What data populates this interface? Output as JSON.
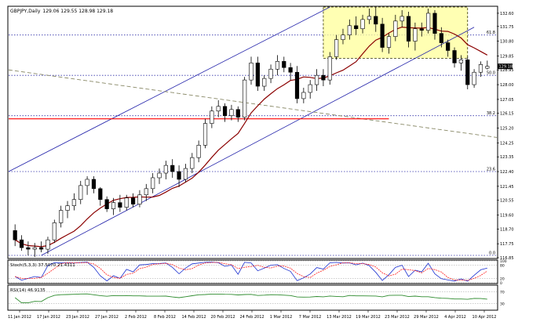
{
  "chart_data": {
    "type": "candlestick",
    "title": "GBPJPY,Daily",
    "ohlc_readout": "129.06 129.55 128.98 129.18",
    "last_price": "129.18",
    "price_axis": {
      "ticks": [
        "132.60",
        "131.75",
        "130.80",
        "129.85",
        "128.95",
        "128.00",
        "127.05",
        "126.15",
        "125.20",
        "124.25",
        "123.35",
        "122.40",
        "121.45",
        "120.55",
        "119.60",
        "118.70",
        "117.75",
        "116.85"
      ],
      "range": [
        116.85,
        133.0
      ]
    },
    "date_axis": {
      "labels": [
        "11 Jan 2012",
        "17 Jan 2012",
        "23 Jan 2012",
        "27 Jan 2012",
        "2 Feb 2012",
        "8 Feb 2012",
        "14 Feb 2012",
        "20 Feb 2012",
        "24 Feb 2012",
        "1 Mar 2012",
        "7 Mar 2012",
        "13 Mar 2012",
        "19 Mar 2012",
        "23 Mar 2012",
        "29 Mar 2012",
        "4 Apr 2012",
        "10 Apr 2012"
      ]
    },
    "fib_levels": [
      {
        "label": "61.8",
        "price": 131.2
      },
      {
        "label": "50.0",
        "price": 128.6
      },
      {
        "label": "38.2",
        "price": 126.0
      },
      {
        "label": "23.6",
        "price": 122.4
      },
      {
        "label": "0.0",
        "price": 117.0
      }
    ],
    "moving_average": {
      "color": "#8b0000"
    },
    "candles": [
      {
        "o": 118.6,
        "h": 119.0,
        "l": 117.6,
        "c": 118.0
      },
      {
        "o": 118.0,
        "h": 118.3,
        "l": 117.3,
        "c": 117.5
      },
      {
        "o": 117.5,
        "h": 117.9,
        "l": 117.0,
        "c": 117.4
      },
      {
        "o": 117.4,
        "h": 117.8,
        "l": 116.9,
        "c": 117.5
      },
      {
        "o": 117.5,
        "h": 117.9,
        "l": 117.2,
        "c": 117.4
      },
      {
        "o": 117.4,
        "h": 118.2,
        "l": 117.1,
        "c": 118.0
      },
      {
        "o": 118.0,
        "h": 119.3,
        "l": 117.8,
        "c": 119.1
      },
      {
        "o": 119.1,
        "h": 120.2,
        "l": 118.8,
        "c": 119.9
      },
      {
        "o": 119.9,
        "h": 120.5,
        "l": 119.4,
        "c": 120.2
      },
      {
        "o": 120.2,
        "h": 121.0,
        "l": 119.9,
        "c": 120.6
      },
      {
        "o": 120.6,
        "h": 121.8,
        "l": 120.3,
        "c": 121.5
      },
      {
        "o": 121.5,
        "h": 122.1,
        "l": 120.9,
        "c": 121.9
      },
      {
        "o": 121.9,
        "h": 122.1,
        "l": 121.0,
        "c": 121.3
      },
      {
        "o": 121.3,
        "h": 121.4,
        "l": 120.2,
        "c": 120.6
      },
      {
        "o": 120.6,
        "h": 120.8,
        "l": 119.8,
        "c": 120.0
      },
      {
        "o": 120.0,
        "h": 120.7,
        "l": 119.6,
        "c": 120.4
      },
      {
        "o": 120.4,
        "h": 120.9,
        "l": 119.8,
        "c": 120.1
      },
      {
        "o": 120.1,
        "h": 120.9,
        "l": 119.9,
        "c": 120.7
      },
      {
        "o": 120.7,
        "h": 121.0,
        "l": 120.1,
        "c": 120.3
      },
      {
        "o": 120.3,
        "h": 121.2,
        "l": 120.1,
        "c": 120.9
      },
      {
        "o": 120.9,
        "h": 121.6,
        "l": 120.5,
        "c": 121.3
      },
      {
        "o": 121.3,
        "h": 122.3,
        "l": 121.0,
        "c": 122.0
      },
      {
        "o": 122.0,
        "h": 122.6,
        "l": 121.6,
        "c": 122.3
      },
      {
        "o": 122.3,
        "h": 123.1,
        "l": 121.9,
        "c": 122.8
      },
      {
        "o": 122.8,
        "h": 123.2,
        "l": 122.0,
        "c": 122.4
      },
      {
        "o": 122.4,
        "h": 122.8,
        "l": 121.4,
        "c": 121.9
      },
      {
        "o": 121.9,
        "h": 122.9,
        "l": 121.7,
        "c": 122.6
      },
      {
        "o": 122.6,
        "h": 123.6,
        "l": 122.3,
        "c": 123.3
      },
      {
        "o": 123.3,
        "h": 124.4,
        "l": 123.0,
        "c": 124.1
      },
      {
        "o": 124.1,
        "h": 125.8,
        "l": 123.9,
        "c": 125.5
      },
      {
        "o": 125.5,
        "h": 126.6,
        "l": 125.2,
        "c": 126.3
      },
      {
        "o": 126.3,
        "h": 127.0,
        "l": 125.9,
        "c": 126.6
      },
      {
        "o": 126.6,
        "h": 126.8,
        "l": 125.6,
        "c": 126.0
      },
      {
        "o": 126.0,
        "h": 126.7,
        "l": 125.7,
        "c": 126.4
      },
      {
        "o": 126.4,
        "h": 126.6,
        "l": 125.6,
        "c": 125.9
      },
      {
        "o": 125.9,
        "h": 128.5,
        "l": 125.7,
        "c": 128.3
      },
      {
        "o": 128.3,
        "h": 129.8,
        "l": 128.0,
        "c": 129.4
      },
      {
        "o": 129.4,
        "h": 129.8,
        "l": 127.6,
        "c": 127.9
      },
      {
        "o": 127.9,
        "h": 128.6,
        "l": 127.6,
        "c": 128.4
      },
      {
        "o": 128.4,
        "h": 129.3,
        "l": 128.1,
        "c": 129.0
      },
      {
        "o": 129.0,
        "h": 129.9,
        "l": 128.6,
        "c": 129.5
      },
      {
        "o": 129.5,
        "h": 129.8,
        "l": 128.8,
        "c": 129.1
      },
      {
        "o": 129.1,
        "h": 129.4,
        "l": 128.3,
        "c": 128.8
      },
      {
        "o": 128.8,
        "h": 129.2,
        "l": 126.8,
        "c": 127.1
      },
      {
        "o": 127.1,
        "h": 127.8,
        "l": 126.8,
        "c": 127.5
      },
      {
        "o": 127.5,
        "h": 128.3,
        "l": 127.1,
        "c": 128.0
      },
      {
        "o": 128.0,
        "h": 129.0,
        "l": 127.6,
        "c": 128.6
      },
      {
        "o": 128.6,
        "h": 129.0,
        "l": 127.9,
        "c": 128.3
      },
      {
        "o": 128.3,
        "h": 130.1,
        "l": 128.0,
        "c": 129.8
      },
      {
        "o": 129.8,
        "h": 131.2,
        "l": 129.6,
        "c": 130.9
      },
      {
        "o": 130.9,
        "h": 131.6,
        "l": 130.6,
        "c": 131.2
      },
      {
        "o": 131.2,
        "h": 132.2,
        "l": 130.9,
        "c": 131.8
      },
      {
        "o": 131.8,
        "h": 132.4,
        "l": 131.2,
        "c": 131.6
      },
      {
        "o": 131.6,
        "h": 132.5,
        "l": 131.3,
        "c": 132.2
      },
      {
        "o": 132.2,
        "h": 132.9,
        "l": 131.9,
        "c": 132.4
      },
      {
        "o": 132.4,
        "h": 133.0,
        "l": 131.4,
        "c": 131.9
      },
      {
        "o": 131.9,
        "h": 132.3,
        "l": 130.1,
        "c": 130.4
      },
      {
        "o": 130.4,
        "h": 131.3,
        "l": 130.0,
        "c": 131.1
      },
      {
        "o": 131.1,
        "h": 132.5,
        "l": 130.8,
        "c": 132.1
      },
      {
        "o": 132.1,
        "h": 132.8,
        "l": 131.7,
        "c": 132.4
      },
      {
        "o": 132.4,
        "h": 132.7,
        "l": 130.4,
        "c": 130.8
      },
      {
        "o": 130.8,
        "h": 132.0,
        "l": 130.2,
        "c": 131.6
      },
      {
        "o": 131.6,
        "h": 132.0,
        "l": 131.1,
        "c": 131.5
      },
      {
        "o": 131.5,
        "h": 132.9,
        "l": 131.3,
        "c": 132.6
      },
      {
        "o": 132.6,
        "h": 132.8,
        "l": 130.9,
        "c": 131.3
      },
      {
        "o": 131.3,
        "h": 131.7,
        "l": 130.4,
        "c": 130.7
      },
      {
        "o": 130.7,
        "h": 130.9,
        "l": 129.8,
        "c": 130.2
      },
      {
        "o": 130.2,
        "h": 130.4,
        "l": 129.1,
        "c": 129.4
      },
      {
        "o": 129.4,
        "h": 129.9,
        "l": 128.9,
        "c": 129.6
      },
      {
        "o": 129.6,
        "h": 129.8,
        "l": 127.7,
        "c": 128.0
      },
      {
        "o": 128.0,
        "h": 129.0,
        "l": 127.8,
        "c": 128.8
      },
      {
        "o": 128.8,
        "h": 129.5,
        "l": 128.5,
        "c": 129.3
      },
      {
        "o": 129.06,
        "h": 129.55,
        "l": 128.98,
        "c": 129.18
      }
    ],
    "stochastic": {
      "label": "Stoch(5,3,3) 37.5070 21.4311",
      "levels": [
        "100",
        "80",
        "20",
        "0"
      ]
    },
    "rsi": {
      "label": "RSI(14) 46.9135",
      "levels": [
        "70",
        "30"
      ]
    }
  }
}
